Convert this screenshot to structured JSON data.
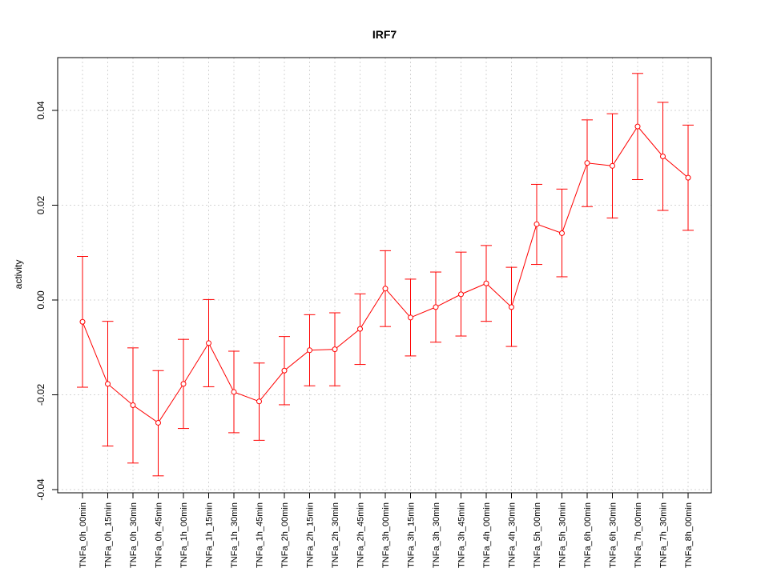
{
  "chart_data": {
    "type": "line",
    "title": "IRF7",
    "xlabel": "",
    "ylabel": "activity",
    "ylim": [
      -0.04,
      0.05
    ],
    "yticks": [
      -0.04,
      -0.02,
      0.0,
      0.02,
      0.04
    ],
    "ytick_labels": [
      "-0.04",
      "-0.02",
      "0.00",
      "0.02",
      "0.04"
    ],
    "grid": true,
    "color": "#ff0000",
    "categories": [
      "TNFa_0h_00min",
      "TNFa_0h_15min",
      "TNFa_0h_30min",
      "TNFa_0h_45min",
      "TNFa_1h_00min",
      "TNFa_1h_15min",
      "TNFa_1h_30min",
      "TNFa_1h_45min",
      "TNFa_2h_00min",
      "TNFa_2h_15min",
      "TNFa_2h_30min",
      "TNFa_2h_45min",
      "TNFa_3h_00min",
      "TNFa_3h_15min",
      "TNFa_3h_30min",
      "TNFa_3h_45min",
      "TNFa_4h_00min",
      "TNFa_4h_30min",
      "TNFa_5h_00min",
      "TNFa_5h_30min",
      "TNFa_6h_00min",
      "TNFa_6h_30min",
      "TNFa_7h_00min",
      "TNFa_7h_30min",
      "TNFa_8h_00min"
    ],
    "series": [
      {
        "values": [
          -0.0046,
          -0.0177,
          -0.0222,
          -0.0259,
          -0.0177,
          -0.0091,
          -0.0194,
          -0.0214,
          -0.0149,
          -0.0106,
          -0.0104,
          -0.0061,
          0.0024,
          -0.0037,
          -0.0015,
          0.0012,
          0.0035,
          -0.0015,
          0.016,
          0.0141,
          0.0289,
          0.0283,
          0.0366,
          0.0303,
          0.0258
        ],
        "upper": [
          0.0092,
          -0.0045,
          -0.0101,
          -0.0149,
          -0.0083,
          0.0001,
          -0.0108,
          -0.0133,
          -0.0077,
          -0.0031,
          -0.0027,
          0.0013,
          0.0104,
          0.0044,
          0.0059,
          0.0101,
          0.0115,
          0.0069,
          0.0244,
          0.0234,
          0.038,
          0.0393,
          0.0478,
          0.0417,
          0.0369
        ],
        "lower": [
          -0.0184,
          -0.0308,
          -0.0344,
          -0.0371,
          -0.0271,
          -0.0183,
          -0.028,
          -0.0296,
          -0.0221,
          -0.0181,
          -0.0181,
          -0.0136,
          -0.0056,
          -0.0118,
          -0.0089,
          -0.0076,
          -0.0045,
          -0.0098,
          0.0075,
          0.0049,
          0.0197,
          0.0173,
          0.0254,
          0.0189,
          0.0147
        ]
      }
    ]
  }
}
